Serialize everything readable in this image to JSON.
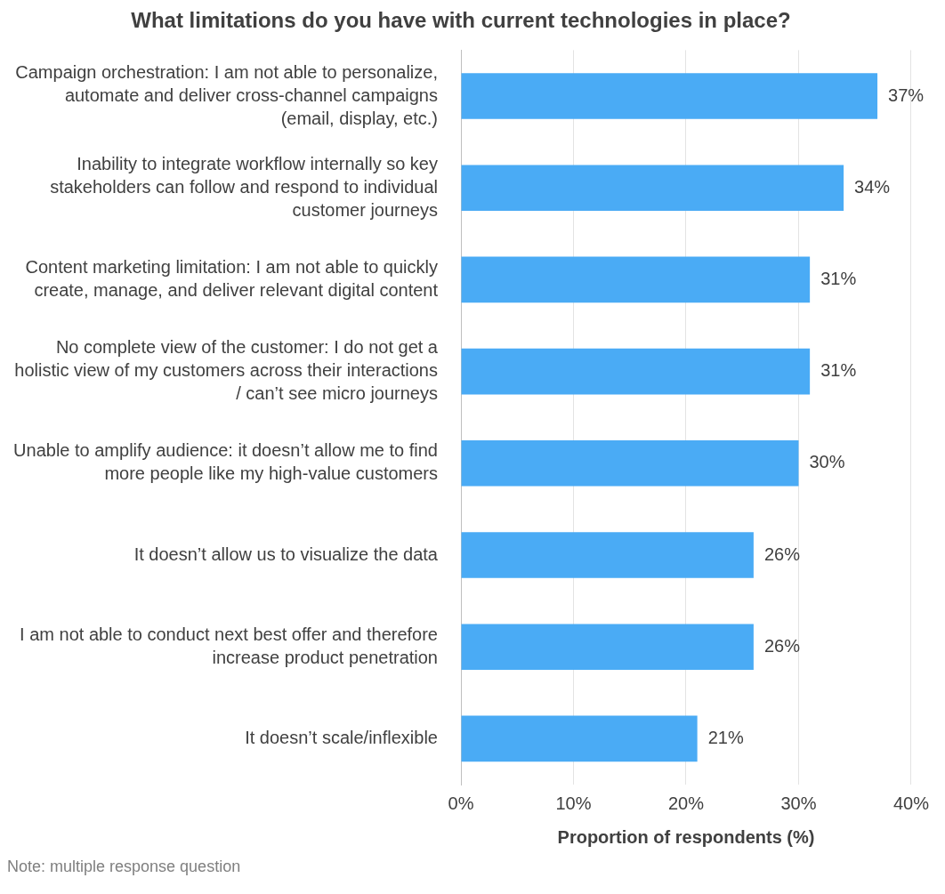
{
  "chart_data": {
    "type": "bar",
    "orientation": "horizontal",
    "title": "What limitations do you have with current technologies in place?",
    "xlabel": "Proportion of respondents (%)",
    "categories": [
      "Campaign orchestration: I am not able to personalize, automate and deliver cross-channel campaigns (email, display, etc.)",
      "Inability to integrate workflow internally so key stakeholders can follow and respond to individual customer journeys",
      "Content marketing limitation: I am not able to quickly create, manage, and deliver relevant digital content",
      "No complete view of the customer: I do not get a holistic view of my customers across their interactions / can’t see micro journeys",
      "Unable to amplify audience: it doesn’t allow me to find more people like my high-value customers",
      "It doesn’t allow us to visualize the data",
      "I am not able to conduct next best offer and therefore increase product penetration",
      "It doesn’t scale/inflexible"
    ],
    "values": [
      37,
      34,
      31,
      31,
      30,
      26,
      26,
      21
    ],
    "value_labels": [
      "37%",
      "34%",
      "31%",
      "31%",
      "30%",
      "26%",
      "26%",
      "21%"
    ],
    "color": "#4aabf5",
    "xlim": [
      0,
      40
    ],
    "xticks": [
      {
        "value": 0,
        "label": "0%"
      },
      {
        "value": 10,
        "label": "10%"
      },
      {
        "value": 20,
        "label": "20%"
      },
      {
        "value": 30,
        "label": "30%"
      },
      {
        "value": 40,
        "label": "40%"
      }
    ],
    "grid": "x",
    "annotations": [
      "Note: multiple response question"
    ]
  }
}
